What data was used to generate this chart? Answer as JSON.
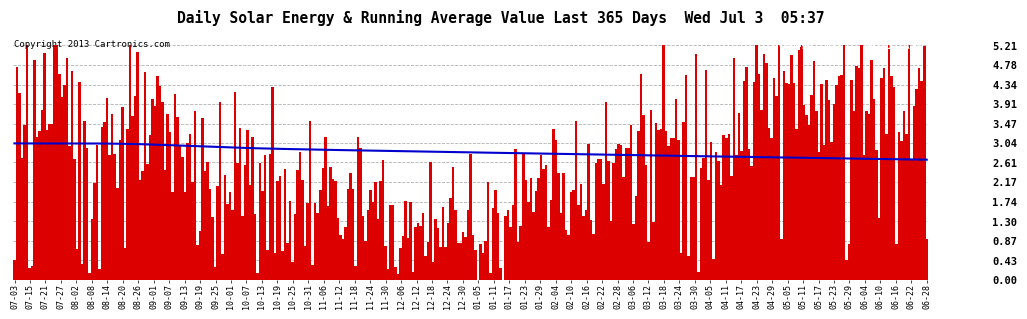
{
  "title": "Daily Solar Energy & Running Average Value Last 365 Days  Wed Jul 3  05:37",
  "copyright": "Copyright 2013 Cartronics.com",
  "ylabel_right_values": [
    5.21,
    4.78,
    4.34,
    3.91,
    3.47,
    3.04,
    2.61,
    2.17,
    1.74,
    1.3,
    0.87,
    0.43,
    0.0
  ],
  "ylim": [
    0.0,
    5.5
  ],
  "bar_color": "#dd0000",
  "avg_line_color": "#0000cc",
  "plot_bg_color": "#ffffff",
  "grid_color": "#aaaaaa",
  "title_color": "#000000",
  "fig_bg": "#ffffff",
  "legend_avg_bg": "#0000aa",
  "legend_daily_bg": "#dd0000",
  "legend_text_color": "#ffffff",
  "n_bars": 365,
  "x_tick_labels": [
    "07-03",
    "07-15",
    "07-21",
    "07-27",
    "08-02",
    "08-08",
    "08-14",
    "08-20",
    "08-26",
    "09-01",
    "09-07",
    "09-13",
    "09-19",
    "09-25",
    "10-01",
    "10-07",
    "10-13",
    "10-19",
    "10-25",
    "10-31",
    "11-06",
    "11-12",
    "11-18",
    "11-24",
    "11-30",
    "12-06",
    "12-12",
    "12-18",
    "12-24",
    "12-30",
    "01-05",
    "01-11",
    "01-17",
    "01-23",
    "01-29",
    "02-04",
    "02-10",
    "02-16",
    "02-22",
    "02-28",
    "03-06",
    "03-12",
    "03-18",
    "03-24",
    "03-30",
    "04-05",
    "04-11",
    "04-17",
    "04-23",
    "04-29",
    "05-05",
    "05-11",
    "05-17",
    "05-23",
    "05-29",
    "06-04",
    "06-10",
    "06-16",
    "06-22",
    "06-28"
  ]
}
